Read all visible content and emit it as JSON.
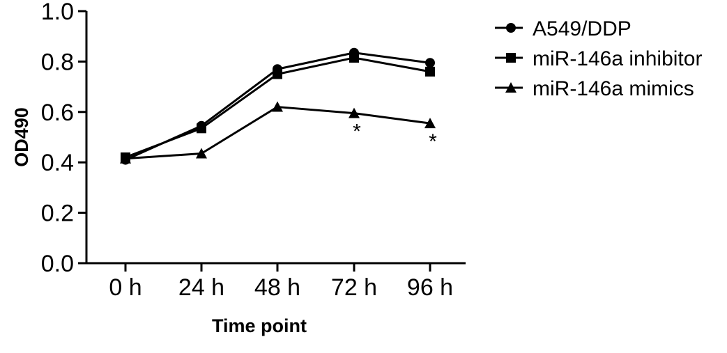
{
  "chart_data": {
    "type": "line",
    "xlabel": "Time point",
    "ylabel": "OD490",
    "categories": [
      "0 h",
      "24 h",
      "48 h",
      "72 h",
      "96 h"
    ],
    "ylim": [
      0.0,
      1.0
    ],
    "yticks": [
      "0.0",
      "0.2",
      "0.4",
      "0.6",
      "0.8",
      "1.0"
    ],
    "grid": false,
    "legend_position": "top-right, outside plot",
    "series": [
      {
        "name": "A549/DDP",
        "marker": "circle",
        "color": "#000000",
        "values": [
          0.41,
          0.545,
          0.77,
          0.835,
          0.795
        ]
      },
      {
        "name": "miR-146a inhibitor",
        "marker": "square",
        "color": "#000000",
        "values": [
          0.42,
          0.535,
          0.75,
          0.815,
          0.76
        ]
      },
      {
        "name": "miR-146a mimics",
        "marker": "triangle",
        "color": "#000000",
        "values": [
          0.415,
          0.435,
          0.62,
          0.595,
          0.555
        ]
      }
    ],
    "annotations": [
      {
        "text": "*",
        "category": "72 h",
        "series": "miR-146a mimics"
      },
      {
        "text": "*",
        "category": "96 h",
        "series": "miR-146a mimics"
      }
    ]
  }
}
